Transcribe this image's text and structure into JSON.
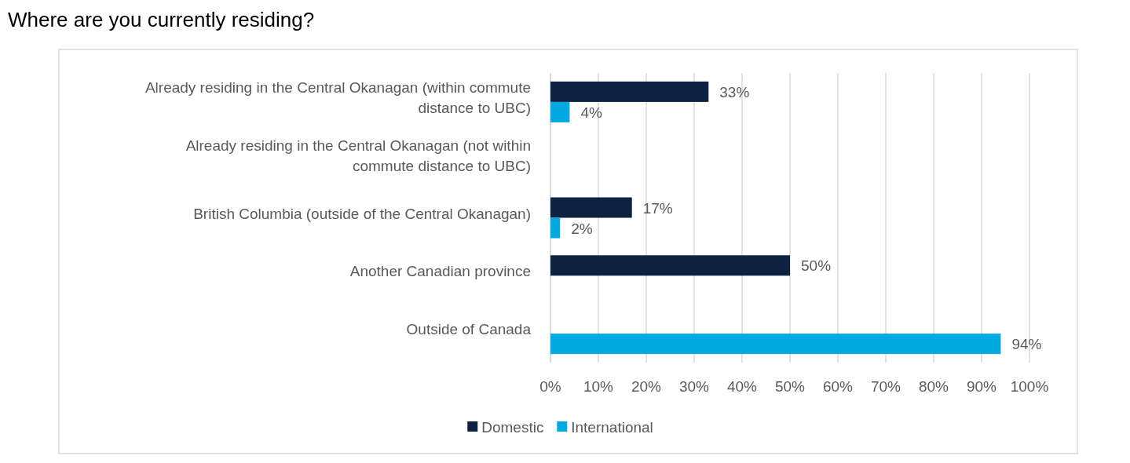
{
  "chart_data": {
    "type": "bar",
    "orientation": "horizontal",
    "title": "Where are you currently residing?",
    "categories": [
      "Already residing in the Central Okanagan (within commute distance to UBC)",
      "Already residing in the Central Okanagan (not within commute distance to UBC)",
      "British Columbia (outside of the Central Okanagan)",
      "Another Canadian province",
      "Outside of Canada"
    ],
    "series": [
      {
        "name": "Domestic",
        "color": "#0d2240",
        "values": [
          33,
          null,
          17,
          50,
          null
        ],
        "value_labels": [
          "33%",
          null,
          "17%",
          "50%",
          null
        ]
      },
      {
        "name": "International",
        "color": "#00a9e0",
        "values": [
          4,
          null,
          2,
          null,
          94
        ],
        "value_labels": [
          "4%",
          null,
          "2%",
          null,
          "94%"
        ]
      }
    ],
    "xlim": [
      0,
      100
    ],
    "xticks": [
      {
        "value": 0,
        "label": "0%"
      },
      {
        "value": 10,
        "label": "10%"
      },
      {
        "value": 20,
        "label": "20%"
      },
      {
        "value": 30,
        "label": "30%"
      },
      {
        "value": 40,
        "label": "40%"
      },
      {
        "value": 50,
        "label": "50%"
      },
      {
        "value": 60,
        "label": "60%"
      },
      {
        "value": 70,
        "label": "70%"
      },
      {
        "value": 80,
        "label": "80%"
      },
      {
        "value": 90,
        "label": "90%"
      },
      {
        "value": 100,
        "label": "100%"
      }
    ],
    "grid": "x",
    "legend": "bottom"
  }
}
